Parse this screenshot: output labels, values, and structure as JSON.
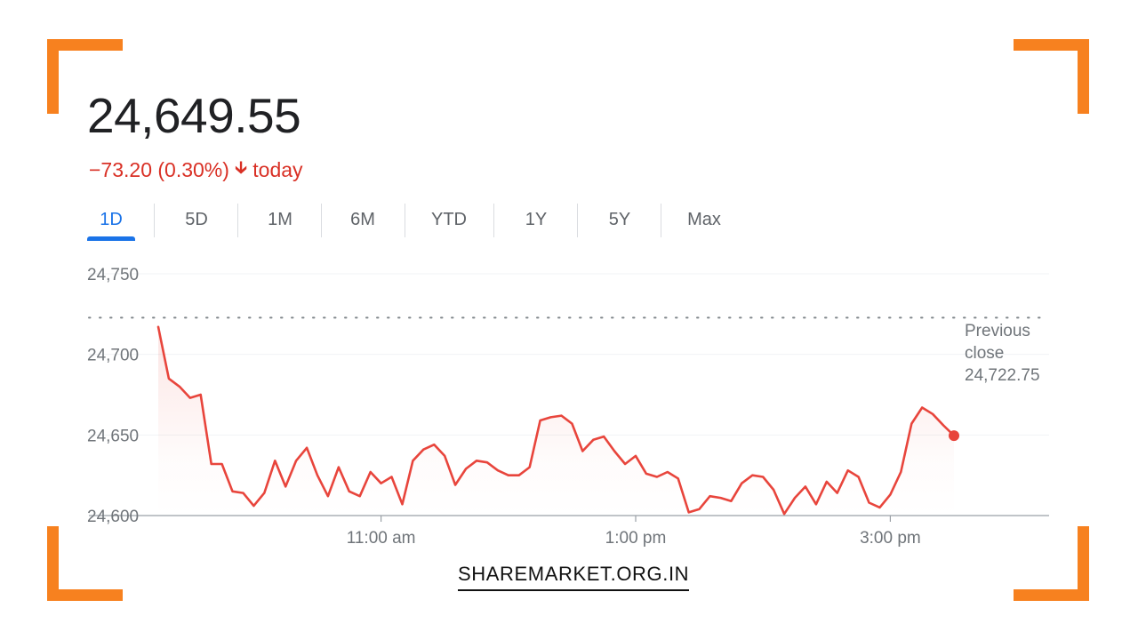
{
  "quote": {
    "price": "24,649.55",
    "change": "−73.20 (0.30%)",
    "change_direction": "down",
    "change_period": "today",
    "change_color": "#d93025"
  },
  "tabs": [
    {
      "label": "1D",
      "active": true
    },
    {
      "label": "5D",
      "active": false
    },
    {
      "label": "1M",
      "active": false
    },
    {
      "label": "6M",
      "active": false
    },
    {
      "label": "YTD",
      "active": false
    },
    {
      "label": "1Y",
      "active": false
    },
    {
      "label": "5Y",
      "active": false
    },
    {
      "label": "Max",
      "active": false
    }
  ],
  "previous_close": {
    "line1": "Previous",
    "line2": "close",
    "value_label": "24,722.75",
    "value": 24722.75
  },
  "brand": "SHAREMARKET.ORG.IN",
  "colors": {
    "accent": "#1a73e8",
    "line": "#e8453c",
    "frame": "#f7811f"
  },
  "chart_data": {
    "type": "line",
    "title": "",
    "xlabel": "",
    "ylabel": "",
    "ylim": [
      24600,
      24750
    ],
    "yticks": [
      24600,
      24650,
      24700,
      24750
    ],
    "ytick_labels": [
      "24,600",
      "24,650",
      "24,700",
      "24,750"
    ],
    "xlim": [
      "09:15",
      "15:30"
    ],
    "xticks": [
      "11:00",
      "13:00",
      "15:00"
    ],
    "xtick_labels": [
      "11:00 am",
      "1:00 pm",
      "3:00 pm"
    ],
    "reference_line": {
      "label": "Previous close",
      "value": 24722.75
    },
    "series": [
      {
        "x": [
          "09:15",
          "09:20",
          "09:25",
          "09:30",
          "09:35",
          "09:40",
          "09:45",
          "09:50",
          "09:55",
          "10:00",
          "10:05",
          "10:10",
          "10:15",
          "10:20",
          "10:25",
          "10:30",
          "10:35",
          "10:40",
          "10:45",
          "10:50",
          "10:55",
          "11:00",
          "11:05",
          "11:10",
          "11:15",
          "11:20",
          "11:25",
          "11:30",
          "11:35",
          "11:40",
          "11:45",
          "11:50",
          "11:55",
          "12:00",
          "12:05",
          "12:10",
          "12:15",
          "12:20",
          "12:25",
          "12:30",
          "12:35",
          "12:40",
          "12:45",
          "12:50",
          "12:55",
          "13:00",
          "13:05",
          "13:10",
          "13:15",
          "13:20",
          "13:25",
          "13:30",
          "13:35",
          "13:40",
          "13:45",
          "13:50",
          "13:55",
          "14:00",
          "14:05",
          "14:10",
          "14:15",
          "14:20",
          "14:25",
          "14:30",
          "14:35",
          "14:40",
          "14:45",
          "14:50",
          "14:55",
          "15:00",
          "15:05",
          "15:10",
          "15:15",
          "15:20",
          "15:25",
          "15:30"
        ],
        "values": [
          24717,
          24685,
          24680,
          24673,
          24675,
          24632,
          24632,
          24615,
          24614,
          24606,
          24614,
          24634,
          24618,
          24634,
          24642,
          24625,
          24612,
          24630,
          24615,
          24612,
          24627,
          24620,
          24624,
          24607,
          24634,
          24641,
          24644,
          24637,
          24619,
          24629,
          24634,
          24633,
          24628,
          24625,
          24625,
          24630,
          24659,
          24661,
          24662,
          24657,
          24640,
          24647,
          24649,
          24640,
          24632,
          24637,
          24626,
          24624,
          24627,
          24623,
          24602,
          24604,
          24612,
          24611,
          24609,
          24620,
          24625,
          24624,
          24616,
          24601,
          24611,
          24618,
          24607,
          24621,
          24614,
          24628,
          24624,
          24608,
          24605,
          24613,
          24627,
          24657,
          24667,
          24663,
          24656,
          24649.55
        ],
        "color": "#e8453c"
      }
    ]
  }
}
